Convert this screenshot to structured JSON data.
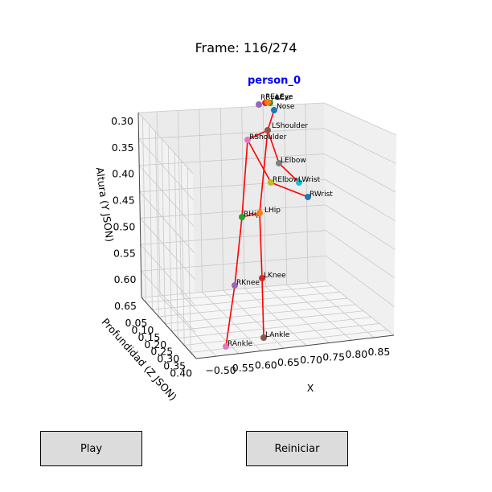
{
  "title": "Frame: 116/274",
  "person_label": "person_0",
  "buttons": {
    "play": "Play",
    "reset": "Reiniciar"
  },
  "chart_data": {
    "type": "scatter3d",
    "xlabel": "X",
    "ylabel": "Profundidad (Z JSON)",
    "zlabel": "Altura (Y JSON)",
    "x_ticks": [
      "−0.50",
      "0.55",
      "0.60",
      "0.65",
      "0.70",
      "0.75",
      "0.80",
      "0.85"
    ],
    "y_ticks": [
      "0.05",
      "0.10",
      "0.15",
      "0.20",
      "0.25",
      "0.30",
      "0.35",
      "0.40"
    ],
    "z_ticks": [
      "0.30",
      "0.35",
      "0.40",
      "0.45",
      "0.50",
      "0.55",
      "0.60",
      "0.65"
    ],
    "skeleton_color": "#ff0000",
    "joints": [
      {
        "name": "REye",
        "color": "#9467bd"
      },
      {
        "name": "LEye",
        "color": "#2ca02c"
      },
      {
        "name": "REar",
        "color": "#d62728"
      },
      {
        "name": "LEar",
        "color": "#ff7f0e"
      },
      {
        "name": "Nose",
        "color": "#1f77b4"
      },
      {
        "name": "LShoulder",
        "color": "#8c564b"
      },
      {
        "name": "RShoulder",
        "color": "#e377c2"
      },
      {
        "name": "LElbow",
        "color": "#7f7f7f"
      },
      {
        "name": "RElbow",
        "color": "#bcbd22"
      },
      {
        "name": "LWrist",
        "color": "#17becf"
      },
      {
        "name": "RWrist",
        "color": "#1f77b4"
      },
      {
        "name": "RHip",
        "color": "#2ca02c"
      },
      {
        "name": "LHip",
        "color": "#ff7f0e"
      },
      {
        "name": "RKnee",
        "color": "#9467bd"
      },
      {
        "name": "LKnee",
        "color": "#d62728"
      },
      {
        "name": "RAnkle",
        "color": "#e377c2"
      },
      {
        "name": "LAnkle",
        "color": "#8c564b"
      }
    ],
    "bones": [
      [
        "Nose",
        "LShoulder"
      ],
      [
        "LShoulder",
        "RShoulder"
      ],
      [
        "LShoulder",
        "LElbow"
      ],
      [
        "LElbow",
        "LWrist"
      ],
      [
        "RShoulder",
        "RElbow"
      ],
      [
        "RElbow",
        "RWrist"
      ],
      [
        "LShoulder",
        "LHip"
      ],
      [
        "RShoulder",
        "RHip"
      ],
      [
        "RHip",
        "LHip"
      ],
      [
        "RHip",
        "RKnee"
      ],
      [
        "RKnee",
        "RAnkle"
      ],
      [
        "LHip",
        "LKnee"
      ],
      [
        "LKnee",
        "LAnkle"
      ]
    ]
  }
}
